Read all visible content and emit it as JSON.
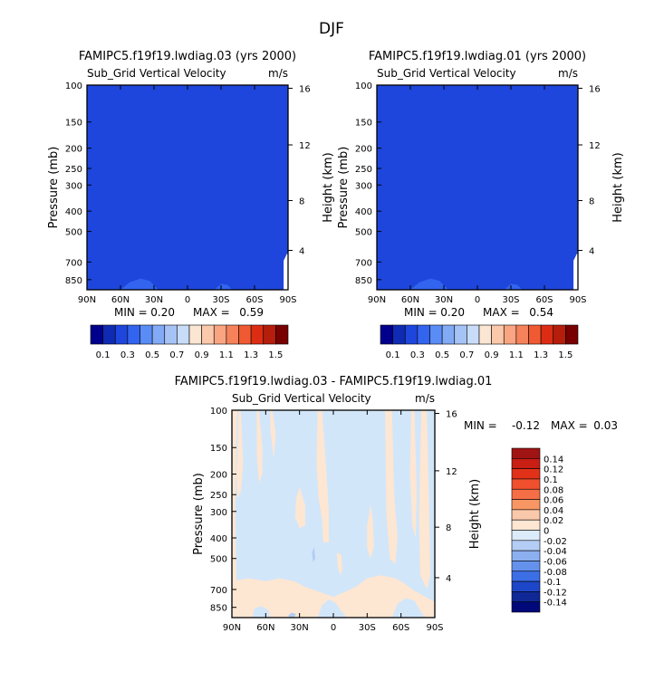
{
  "page_title": "DJF",
  "chart_data": [
    {
      "type": "heatmap",
      "title": "FAMIPC5.f19f19.lwdiag.03 (yrs 2000)",
      "subtitle": "Sub_Grid Vertical Velocity",
      "units": "m/s",
      "xlabel": "",
      "ylabel": "Pressure (mb)",
      "y2label": "Height (km)",
      "x_ticks": [
        "90N",
        "60N",
        "30N",
        "0",
        "30S",
        "60S",
        "90S"
      ],
      "x_range": [
        90,
        -90
      ],
      "y_ticks": [
        "100",
        "150",
        "200",
        "250",
        "300",
        "400",
        "500",
        "700",
        "850"
      ],
      "y_range_mb": [
        100,
        950
      ],
      "y_scale": "log",
      "y2_ticks": [
        "16",
        "12",
        "8",
        "4"
      ],
      "min_label": "MIN =",
      "min_value": "0.20",
      "max_label": "MAX =",
      "max_value": "0.59",
      "colorbar_labels": [
        "0.1",
        "0.3",
        "0.5",
        "0.7",
        "0.9",
        "1.1",
        "1.3",
        "1.5"
      ],
      "colorbar_levels": [
        0.1,
        0.2,
        0.3,
        0.4,
        0.5,
        0.6,
        0.7,
        0.8,
        0.9,
        1.0,
        1.1,
        1.2,
        1.3,
        1.4,
        1.5
      ],
      "colorbar_colors": [
        "#00008c",
        "#0f2bb4",
        "#1e46dc",
        "#3264f0",
        "#5a8cf5",
        "#82aaf5",
        "#a5c3f5",
        "#c8dcfa",
        "#fae6d2",
        "#fac8aa",
        "#faa582",
        "#f5825a",
        "#f05a32",
        "#dc2d14",
        "#b41e0a",
        "#780000"
      ],
      "background_color": "#1e46dc",
      "contours": [
        {
          "color": "#3264f0",
          "points": [
            [
              60,
              950
            ],
            [
              52,
              875
            ],
            [
              42,
              840
            ],
            [
              34,
              860
            ],
            [
              26,
              950
            ]
          ]
        },
        {
          "color": "#3264f0",
          "points": [
            [
              -24,
              950
            ],
            [
              -30,
              890
            ],
            [
              -36,
              900
            ],
            [
              -40,
              950
            ]
          ]
        },
        {
          "color": "#ffffff",
          "points": [
            [
              -86,
              950
            ],
            [
              -86,
              690
            ],
            [
              -89,
              640
            ],
            [
              -90,
              640
            ],
            [
              -90,
              950
            ]
          ]
        }
      ]
    },
    {
      "type": "heatmap",
      "title": "FAMIPC5.f19f19.lwdiag.01 (yrs 2000)",
      "subtitle": "Sub_Grid Vertical Velocity",
      "units": "m/s",
      "xlabel": "",
      "ylabel": "Pressure (mb)",
      "y2label": "Height (km)",
      "x_ticks": [
        "90N",
        "60N",
        "30N",
        "0",
        "30S",
        "60S",
        "90S"
      ],
      "x_range": [
        90,
        -90
      ],
      "y_ticks": [
        "100",
        "150",
        "200",
        "250",
        "300",
        "400",
        "500",
        "700",
        "850"
      ],
      "y_range_mb": [
        100,
        950
      ],
      "y_scale": "log",
      "y2_ticks": [
        "16",
        "12",
        "8",
        "4"
      ],
      "min_label": "MIN =",
      "min_value": "0.20",
      "max_label": "MAX =",
      "max_value": "0.54",
      "colorbar_labels": [
        "0.1",
        "0.3",
        "0.5",
        "0.7",
        "0.9",
        "1.1",
        "1.3",
        "1.5"
      ],
      "colorbar_levels": [
        0.1,
        0.2,
        0.3,
        0.4,
        0.5,
        0.6,
        0.7,
        0.8,
        0.9,
        1.0,
        1.1,
        1.2,
        1.3,
        1.4,
        1.5
      ],
      "colorbar_colors": [
        "#00008c",
        "#0f2bb4",
        "#1e46dc",
        "#3264f0",
        "#5a8cf5",
        "#82aaf5",
        "#a5c3f5",
        "#c8dcfa",
        "#fae6d2",
        "#fac8aa",
        "#faa582",
        "#f5825a",
        "#f05a32",
        "#dc2d14",
        "#b41e0a",
        "#780000"
      ],
      "background_color": "#1e46dc",
      "contours": [
        {
          "color": "#3264f0",
          "points": [
            [
              60,
              950
            ],
            [
              52,
              875
            ],
            [
              42,
              840
            ],
            [
              34,
              860
            ],
            [
              26,
              950
            ]
          ]
        },
        {
          "color": "#3264f0",
          "points": [
            [
              -24,
              950
            ],
            [
              -30,
              890
            ],
            [
              -36,
              900
            ],
            [
              -40,
              950
            ]
          ]
        },
        {
          "color": "#ffffff",
          "points": [
            [
              -86,
              950
            ],
            [
              -86,
              690
            ],
            [
              -89,
              640
            ],
            [
              -90,
              640
            ],
            [
              -90,
              950
            ]
          ]
        }
      ]
    },
    {
      "type": "heatmap",
      "title": "FAMIPC5.f19f19.lwdiag.03 - FAMIPC5.f19f19.lwdiag.01",
      "subtitle": "Sub_Grid Vertical Velocity",
      "units": "m/s",
      "xlabel": "",
      "ylabel": "Pressure (mb)",
      "y2label": "Height (km)",
      "x_ticks": [
        "90N",
        "60N",
        "30N",
        "0",
        "30S",
        "60S",
        "90S"
      ],
      "x_range": [
        90,
        -90
      ],
      "y_ticks": [
        "100",
        "150",
        "200",
        "250",
        "300",
        "400",
        "500",
        "700",
        "850"
      ],
      "y_range_mb": [
        100,
        950
      ],
      "y_scale": "log",
      "y2_ticks": [
        "16",
        "12",
        "8",
        "4"
      ],
      "min_label": "MIN =",
      "min_value": "-0.12",
      "max_label": "MAX =",
      "max_value": "0.03",
      "colorbar_labels": [
        "0.14",
        "0.12",
        "0.1",
        "0.08",
        "0.06",
        "0.04",
        "0.02",
        "0",
        "-0.02",
        "-0.04",
        "-0.06",
        "-0.08",
        "-0.1",
        "-0.12",
        "-0.14"
      ],
      "colorbar_levels": [
        0.14,
        0.12,
        0.1,
        0.08,
        0.06,
        0.04,
        0.02,
        0,
        -0.02,
        -0.04,
        -0.06,
        -0.08,
        -0.1,
        -0.12,
        -0.14
      ],
      "colorbar_colors": [
        "#a01414",
        "#c81e14",
        "#e13219",
        "#f0502d",
        "#f56e46",
        "#f89664",
        "#fac8aa",
        "#fde6d2",
        "#dcebfa",
        "#b4cdf5",
        "#8caff0",
        "#6491eb",
        "#3c6ee6",
        "#1e46c8",
        "#0f2896",
        "#00087a"
      ],
      "background_color": "#d2e6fa",
      "contours": [
        {
          "color": "#fde6d2",
          "points": [
            [
              90,
              100
            ],
            [
              90,
              950
            ],
            [
              87,
              950
            ],
            [
              86,
              600
            ],
            [
              87,
              300
            ],
            [
              86,
              130
            ],
            [
              85,
              100
            ]
          ]
        },
        {
          "color": "#fde6d2",
          "points": [
            [
              82,
              100
            ],
            [
              80,
              180
            ],
            [
              82,
              240
            ],
            [
              85,
              260
            ],
            [
              86,
              200
            ],
            [
              85,
              150
            ],
            [
              84,
              100
            ]
          ]
        },
        {
          "color": "#fde6d2",
          "points": [
            [
              66,
              100
            ],
            [
              63,
              150
            ],
            [
              63,
              200
            ],
            [
              66,
              220
            ],
            [
              68,
              160
            ],
            [
              68,
              100
            ]
          ]
        },
        {
          "color": "#fde6d2",
          "points": [
            [
              54,
              100
            ],
            [
              51,
              130
            ],
            [
              53,
              170
            ],
            [
              56,
              120
            ],
            [
              56,
              100
            ]
          ]
        },
        {
          "color": "#fde6d2",
          "points": [
            [
              30,
              230
            ],
            [
              25,
              280
            ],
            [
              25,
              350
            ],
            [
              30,
              360
            ],
            [
              34,
              320
            ],
            [
              33,
              260
            ]
          ]
        },
        {
          "color": "#fde6d2",
          "points": [
            [
              10,
              100
            ],
            [
              6,
              200
            ],
            [
              4,
              300
            ],
            [
              4,
              420
            ],
            [
              9,
              420
            ],
            [
              10,
              330
            ],
            [
              13,
              260
            ],
            [
              15,
              180
            ],
            [
              14,
              100
            ]
          ]
        },
        {
          "color": "#fde6d2",
          "points": [
            [
              -3,
              470
            ],
            [
              -4,
              550
            ],
            [
              -6,
              600
            ],
            [
              -8,
              560
            ],
            [
              -7,
              480
            ]
          ]
        },
        {
          "color": "#fde6d2",
          "points": [
            [
              -33,
              280
            ],
            [
              -30,
              350
            ],
            [
              -30,
              450
            ],
            [
              -33,
              500
            ],
            [
              -36,
              440
            ],
            [
              -35,
              330
            ]
          ]
        },
        {
          "color": "#fde6d2",
          "points": [
            [
              -46,
              100
            ],
            [
              -47,
              300
            ],
            [
              -50,
              500
            ],
            [
              -55,
              530
            ],
            [
              -57,
              400
            ],
            [
              -54,
              250
            ],
            [
              -52,
              100
            ]
          ]
        },
        {
          "color": "#fde6d2",
          "points": [
            [
              -69,
              100
            ],
            [
              -68,
              200
            ],
            [
              -70,
              350
            ],
            [
              -73,
              400
            ],
            [
              -74,
              250
            ],
            [
              -72,
              100
            ]
          ]
        },
        {
          "color": "#fde6d2",
          "points": [
            [
              -78,
              100
            ],
            [
              -76,
              300
            ],
            [
              -77,
              600
            ],
            [
              -83,
              700
            ],
            [
              -86,
              600
            ],
            [
              -85,
              300
            ],
            [
              -83,
              100
            ]
          ]
        },
        {
          "color": "#fde6d2",
          "points": [
            [
              90,
              950
            ],
            [
              90,
              640
            ],
            [
              75,
              620
            ],
            [
              60,
              640
            ],
            [
              48,
              620
            ],
            [
              35,
              640
            ],
            [
              25,
              680
            ],
            [
              12,
              720
            ],
            [
              0,
              760
            ],
            [
              -10,
              720
            ],
            [
              -20,
              680
            ],
            [
              -30,
              620
            ],
            [
              -42,
              600
            ],
            [
              -55,
              620
            ],
            [
              -62,
              650
            ],
            [
              -70,
              700
            ],
            [
              -80,
              750
            ],
            [
              -90,
              800
            ],
            [
              -90,
              950
            ]
          ]
        },
        {
          "color": "#d2e6fa",
          "points": [
            [
              14,
              950
            ],
            [
              10,
              830
            ],
            [
              4,
              780
            ],
            [
              -2,
              810
            ],
            [
              -6,
              870
            ],
            [
              -12,
              950
            ]
          ]
        },
        {
          "color": "#d2e6fa",
          "points": [
            [
              -52,
              950
            ],
            [
              -57,
              820
            ],
            [
              -64,
              770
            ],
            [
              -72,
              790
            ],
            [
              -78,
              900
            ],
            [
              -82,
              950
            ]
          ]
        },
        {
          "color": "#d2e6fa",
          "points": [
            [
              72,
              950
            ],
            [
              70,
              860
            ],
            [
              64,
              840
            ],
            [
              58,
              870
            ],
            [
              56,
              950
            ]
          ]
        },
        {
          "color": "#b4cdf5",
          "points": [
            [
              40,
              930
            ],
            [
              37,
              900
            ],
            [
              33,
              915
            ],
            [
              35,
              950
            ],
            [
              39,
              950
            ]
          ]
        },
        {
          "color": "#b4cdf5",
          "points": [
            [
              17,
              440
            ],
            [
              16,
              500
            ],
            [
              18,
              520
            ],
            [
              19,
              470
            ]
          ]
        }
      ]
    }
  ]
}
